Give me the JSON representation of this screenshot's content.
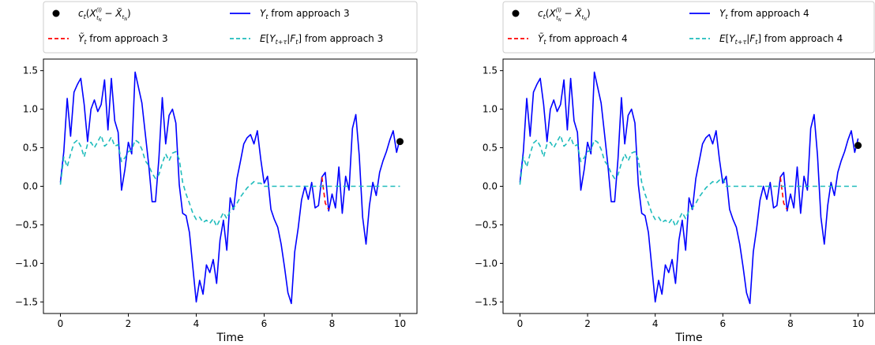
{
  "chart_data": [
    {
      "type": "line",
      "xlabel": "Time",
      "xlim": [
        -0.5,
        10.5
      ],
      "ylim": [
        -1.65,
        1.65
      ],
      "xticks": [
        0,
        2,
        4,
        6,
        8,
        10
      ],
      "yticks": [
        1.5,
        1.0,
        0.5,
        0.0,
        -0.5,
        -1.0,
        -1.5
      ],
      "xtick_labels": [
        "0",
        "2",
        "4",
        "6",
        "8",
        "10"
      ],
      "ytick_labels": [
        "1.5",
        "1.0",
        "0.5",
        "0.0",
        "−0.5",
        "−1.0",
        "−1.5"
      ],
      "legend_position": "above",
      "legend": [
        {
          "series": "point",
          "label": "c_t(X^(l)_{t_N} − X̃_{t_N})"
        },
        {
          "series": "y",
          "label": "Y_t from approach 3"
        },
        {
          "series": "ytilde",
          "label": "Ỹ_t from approach 3"
        },
        {
          "series": "expect",
          "label": "E[Y_{t+τ}|F_t] from approach 3"
        }
      ],
      "series": [
        {
          "key": "y",
          "style": "solid",
          "color": "#0000ff",
          "x": [
            0,
            0.1,
            0.2,
            0.3,
            0.4,
            0.5,
            0.6,
            0.7,
            0.8,
            0.9,
            1,
            1.1,
            1.2,
            1.3,
            1.4,
            1.5,
            1.6,
            1.7,
            1.8,
            1.9,
            2,
            2.1,
            2.2,
            2.3,
            2.4,
            2.5,
            2.6,
            2.7,
            2.8,
            2.9,
            3,
            3.1,
            3.2,
            3.3,
            3.4,
            3.5,
            3.6,
            3.7,
            3.8,
            3.9,
            4,
            4.1,
            4.2,
            4.3,
            4.4,
            4.5,
            4.6,
            4.7,
            4.8,
            4.9,
            5,
            5.1,
            5.2,
            5.3,
            5.4,
            5.5,
            5.6,
            5.7,
            5.8,
            5.9,
            6,
            6.1,
            6.2,
            6.3,
            6.4,
            6.5,
            6.6,
            6.7,
            6.8,
            6.9,
            7,
            7.1,
            7.2,
            7.3,
            7.4,
            7.5,
            7.6,
            7.7,
            7.8,
            7.9,
            8,
            8.1,
            8.2,
            8.3,
            8.4,
            8.5,
            8.6,
            8.7,
            8.8,
            8.9,
            9,
            9.1,
            9.2,
            9.3,
            9.4,
            9.5,
            9.6,
            9.7,
            9.8,
            9.9,
            10
          ],
          "y": [
            0.05,
            0.45,
            1.14,
            0.65,
            1.22,
            1.32,
            1.4,
            1.06,
            0.58,
            1.0,
            1.12,
            0.97,
            1.06,
            1.38,
            0.73,
            1.4,
            0.85,
            0.7,
            -0.05,
            0.22,
            0.57,
            0.42,
            1.48,
            1.28,
            1.08,
            0.68,
            0.28,
            -0.2,
            -0.2,
            0.36,
            1.15,
            0.55,
            0.92,
            1.0,
            0.82,
            0.02,
            -0.35,
            -0.38,
            -0.6,
            -1.05,
            -1.5,
            -1.22,
            -1.4,
            -1.02,
            -1.12,
            -0.95,
            -1.26,
            -0.7,
            -0.44,
            -0.83,
            -0.15,
            -0.3,
            0.1,
            0.32,
            0.55,
            0.63,
            0.67,
            0.55,
            0.72,
            0.35,
            0.04,
            0.13,
            -0.3,
            -0.43,
            -0.53,
            -0.75,
            -1.05,
            -1.38,
            -1.52,
            -0.85,
            -0.55,
            -0.18,
            0.0,
            -0.17,
            0.05,
            -0.28,
            -0.25,
            0.12,
            0.18,
            -0.32,
            -0.1,
            -0.28,
            0.25,
            -0.35,
            0.13,
            -0.05,
            0.75,
            0.93,
            0.4,
            -0.4,
            -0.75,
            -0.25,
            0.05,
            -0.12,
            0.18,
            0.33,
            0.45,
            0.6,
            0.72,
            0.44,
            0.62
          ]
        },
        {
          "key": "ytilde",
          "style": "dashed",
          "color": "#ff0000",
          "x": [
            7.7,
            7.8,
            7.9
          ],
          "y": [
            0.12,
            -0.22,
            -0.3
          ]
        },
        {
          "key": "expect",
          "style": "dashed",
          "color": "#1fbcbc",
          "x": [
            0,
            0.1,
            0.2,
            0.3,
            0.4,
            0.5,
            0.6,
            0.7,
            0.8,
            0.9,
            1,
            1.1,
            1.2,
            1.3,
            1.4,
            1.5,
            1.6,
            1.7,
            1.8,
            1.9,
            2,
            2.1,
            2.2,
            2.3,
            2.4,
            2.5,
            2.6,
            2.7,
            2.8,
            2.9,
            3,
            3.1,
            3.2,
            3.3,
            3.4,
            3.5,
            3.6,
            3.7,
            3.8,
            3.9,
            4,
            4.1,
            4.2,
            4.3,
            4.4,
            4.5,
            4.6,
            4.7,
            4.8,
            4.9,
            5,
            5.1,
            5.2,
            5.3,
            5.4,
            5.5,
            5.6,
            5.7,
            5.8,
            5.9,
            6,
            6.1,
            6.2,
            6.3,
            10
          ],
          "y": [
            0.02,
            0.38,
            0.25,
            0.42,
            0.56,
            0.6,
            0.52,
            0.38,
            0.55,
            0.57,
            0.5,
            0.58,
            0.66,
            0.52,
            0.56,
            0.64,
            0.52,
            0.54,
            0.32,
            0.37,
            0.45,
            0.47,
            0.6,
            0.57,
            0.48,
            0.33,
            0.27,
            0.17,
            0.1,
            0.15,
            0.3,
            0.42,
            0.33,
            0.43,
            0.45,
            0.35,
            0.05,
            -0.1,
            -0.22,
            -0.35,
            -0.43,
            -0.4,
            -0.47,
            -0.44,
            -0.48,
            -0.42,
            -0.52,
            -0.43,
            -0.34,
            -0.42,
            -0.32,
            -0.28,
            -0.22,
            -0.14,
            -0.08,
            -0.02,
            0.02,
            0.06,
            0.04,
            0.04,
            0.0,
            0.0,
            0.0,
            0.0,
            0.0
          ]
        },
        {
          "key": "point",
          "style": "marker",
          "color": "#000000",
          "x": [
            10
          ],
          "y": [
            0.58
          ]
        }
      ]
    },
    {
      "type": "line",
      "xlabel": "Time",
      "xlim": [
        -0.5,
        10.5
      ],
      "ylim": [
        -1.65,
        1.65
      ],
      "xticks": [
        0,
        2,
        4,
        6,
        8,
        10
      ],
      "yticks": [
        1.5,
        1.0,
        0.5,
        0.0,
        -0.5,
        -1.0,
        -1.5
      ],
      "xtick_labels": [
        "0",
        "2",
        "4",
        "6",
        "8",
        "10"
      ],
      "ytick_labels": [
        "1.5",
        "1.0",
        "0.5",
        "0.0",
        "−0.5",
        "−1.0",
        "−1.5"
      ],
      "legend_position": "above",
      "legend": [
        {
          "series": "point",
          "label": "c_t(X^(l)_{t_N} − X̃_{t_N})"
        },
        {
          "series": "y",
          "label": "Y_t from approach 4"
        },
        {
          "series": "ytilde",
          "label": "Ỹ_t from approach 4"
        },
        {
          "series": "expect",
          "label": "E[Y_{t+τ}|F_t] from approach 4"
        }
      ],
      "series": [
        {
          "key": "y",
          "style": "solid",
          "color": "#0000ff",
          "x": [
            0,
            0.1,
            0.2,
            0.3,
            0.4,
            0.5,
            0.6,
            0.7,
            0.8,
            0.9,
            1,
            1.1,
            1.2,
            1.3,
            1.4,
            1.5,
            1.6,
            1.7,
            1.8,
            1.9,
            2,
            2.1,
            2.2,
            2.3,
            2.4,
            2.5,
            2.6,
            2.7,
            2.8,
            2.9,
            3,
            3.1,
            3.2,
            3.3,
            3.4,
            3.5,
            3.6,
            3.7,
            3.8,
            3.9,
            4,
            4.1,
            4.2,
            4.3,
            4.4,
            4.5,
            4.6,
            4.7,
            4.8,
            4.9,
            5,
            5.1,
            5.2,
            5.3,
            5.4,
            5.5,
            5.6,
            5.7,
            5.8,
            5.9,
            6,
            6.1,
            6.2,
            6.3,
            6.4,
            6.5,
            6.6,
            6.7,
            6.8,
            6.9,
            7,
            7.1,
            7.2,
            7.3,
            7.4,
            7.5,
            7.6,
            7.7,
            7.8,
            7.9,
            8,
            8.1,
            8.2,
            8.3,
            8.4,
            8.5,
            8.6,
            8.7,
            8.8,
            8.9,
            9,
            9.1,
            9.2,
            9.3,
            9.4,
            9.5,
            9.6,
            9.7,
            9.8,
            9.9,
            10
          ],
          "y": [
            0.05,
            0.45,
            1.14,
            0.65,
            1.22,
            1.32,
            1.4,
            1.06,
            0.58,
            1.0,
            1.12,
            0.97,
            1.06,
            1.38,
            0.73,
            1.4,
            0.85,
            0.7,
            -0.05,
            0.22,
            0.57,
            0.42,
            1.48,
            1.28,
            1.08,
            0.68,
            0.28,
            -0.2,
            -0.2,
            0.36,
            1.15,
            0.55,
            0.92,
            1.0,
            0.82,
            0.02,
            -0.35,
            -0.38,
            -0.6,
            -1.05,
            -1.5,
            -1.22,
            -1.4,
            -1.02,
            -1.12,
            -0.95,
            -1.26,
            -0.7,
            -0.44,
            -0.83,
            -0.15,
            -0.3,
            0.1,
            0.32,
            0.55,
            0.63,
            0.67,
            0.55,
            0.72,
            0.35,
            0.04,
            0.13,
            -0.3,
            -0.43,
            -0.53,
            -0.75,
            -1.05,
            -1.38,
            -1.52,
            -0.85,
            -0.55,
            -0.18,
            0.0,
            -0.17,
            0.05,
            -0.28,
            -0.25,
            0.12,
            0.18,
            -0.32,
            -0.1,
            -0.28,
            0.25,
            -0.35,
            0.13,
            -0.05,
            0.75,
            0.93,
            0.4,
            -0.4,
            -0.75,
            -0.25,
            0.05,
            -0.12,
            0.18,
            0.33,
            0.45,
            0.6,
            0.72,
            0.44,
            0.62
          ]
        },
        {
          "key": "ytilde",
          "style": "dashed",
          "color": "#ff0000",
          "x": [
            7.7,
            7.8,
            7.9
          ],
          "y": [
            0.12,
            -0.22,
            -0.3
          ]
        },
        {
          "key": "expect",
          "style": "dashed",
          "color": "#1fbcbc",
          "x": [
            0,
            0.1,
            0.2,
            0.3,
            0.4,
            0.5,
            0.6,
            0.7,
            0.8,
            0.9,
            1,
            1.1,
            1.2,
            1.3,
            1.4,
            1.5,
            1.6,
            1.7,
            1.8,
            1.9,
            2,
            2.1,
            2.2,
            2.3,
            2.4,
            2.5,
            2.6,
            2.7,
            2.8,
            2.9,
            3,
            3.1,
            3.2,
            3.3,
            3.4,
            3.5,
            3.6,
            3.7,
            3.8,
            3.9,
            4,
            4.1,
            4.2,
            4.3,
            4.4,
            4.5,
            4.6,
            4.7,
            4.8,
            4.9,
            5,
            5.1,
            5.2,
            5.3,
            5.4,
            5.5,
            5.6,
            5.7,
            5.8,
            5.9,
            6,
            6.1,
            6.2,
            6.3,
            10
          ],
          "y": [
            0.02,
            0.38,
            0.25,
            0.42,
            0.56,
            0.6,
            0.52,
            0.38,
            0.55,
            0.57,
            0.5,
            0.58,
            0.66,
            0.52,
            0.56,
            0.64,
            0.52,
            0.54,
            0.32,
            0.37,
            0.45,
            0.47,
            0.6,
            0.57,
            0.48,
            0.33,
            0.27,
            0.17,
            0.1,
            0.15,
            0.3,
            0.42,
            0.33,
            0.43,
            0.45,
            0.35,
            0.05,
            -0.1,
            -0.22,
            -0.35,
            -0.43,
            -0.4,
            -0.47,
            -0.44,
            -0.48,
            -0.42,
            -0.52,
            -0.43,
            -0.34,
            -0.42,
            -0.32,
            -0.28,
            -0.22,
            -0.14,
            -0.08,
            -0.02,
            0.02,
            0.06,
            0.04,
            0.08,
            0.1,
            0.0,
            0.0,
            0.0,
            0.0
          ]
        },
        {
          "key": "point",
          "style": "marker",
          "color": "#000000",
          "x": [
            10
          ],
          "y": [
            0.53
          ]
        }
      ]
    }
  ]
}
